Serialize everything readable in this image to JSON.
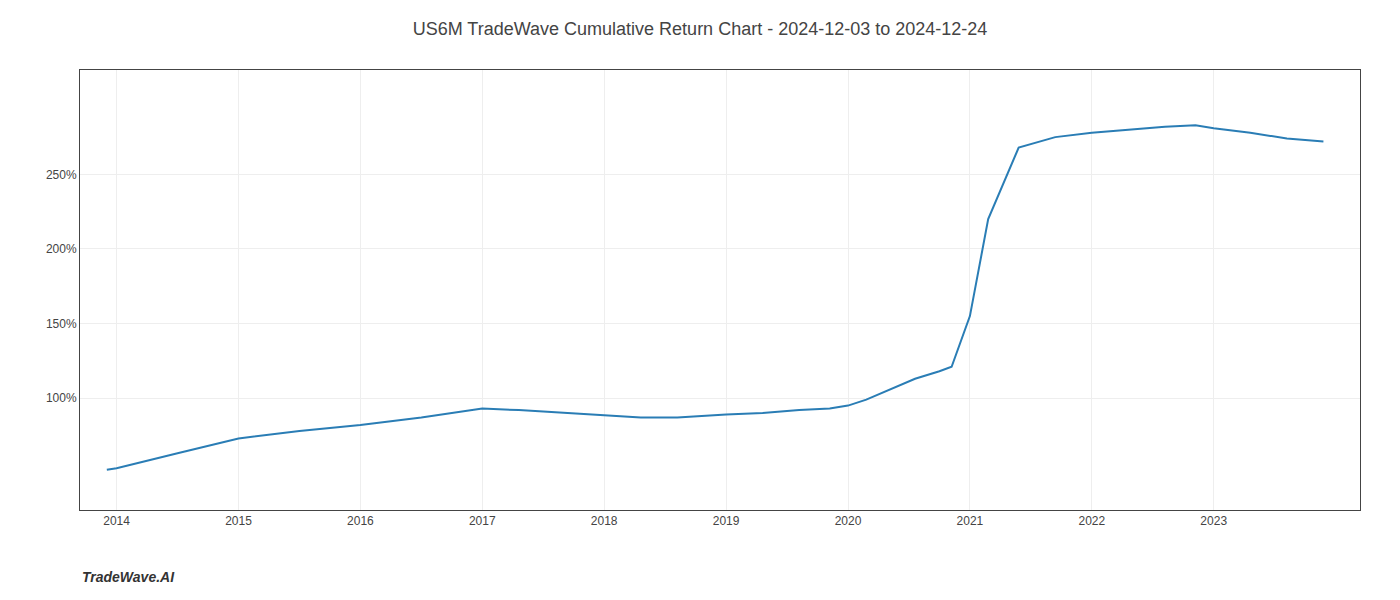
{
  "chart_data": {
    "type": "line",
    "title": "US6M TradeWave Cumulative Return Chart - 2024-12-03 to 2024-12-24",
    "annotations": [
      "TradeWave.AI"
    ],
    "x": [
      2013.92,
      2014.0,
      2014.5,
      2015.0,
      2015.5,
      2016.0,
      2016.5,
      2017.0,
      2017.3,
      2017.7,
      2018.0,
      2018.3,
      2018.6,
      2019.0,
      2019.3,
      2019.6,
      2019.85,
      2020.0,
      2020.15,
      2020.35,
      2020.55,
      2020.75,
      2020.85,
      2021.0,
      2021.15,
      2021.4,
      2021.7,
      2022.0,
      2022.3,
      2022.6,
      2022.85,
      2023.0,
      2023.3,
      2023.6,
      2023.9
    ],
    "values": [
      52,
      53,
      63,
      73,
      78,
      82,
      87,
      93,
      92,
      90,
      88,
      87,
      87,
      89,
      90,
      92,
      93,
      95,
      99,
      106,
      113,
      118,
      121,
      155,
      220,
      268,
      275,
      278,
      280,
      282,
      283,
      281,
      278,
      274,
      272
    ],
    "color": "#2a7db5",
    "xlim": [
      2013.7,
      2024.2
    ],
    "xticks": [
      2014,
      2015,
      2016,
      2017,
      2018,
      2019,
      2020,
      2021,
      2022,
      2023
    ],
    "ylim": [
      25,
      320
    ],
    "yticks": [
      {
        "value": 100,
        "label": "100%"
      },
      {
        "value": 150,
        "label": "150%"
      },
      {
        "value": 200,
        "label": "200%"
      },
      {
        "value": 250,
        "label": "250%"
      }
    ],
    "grid": true
  }
}
